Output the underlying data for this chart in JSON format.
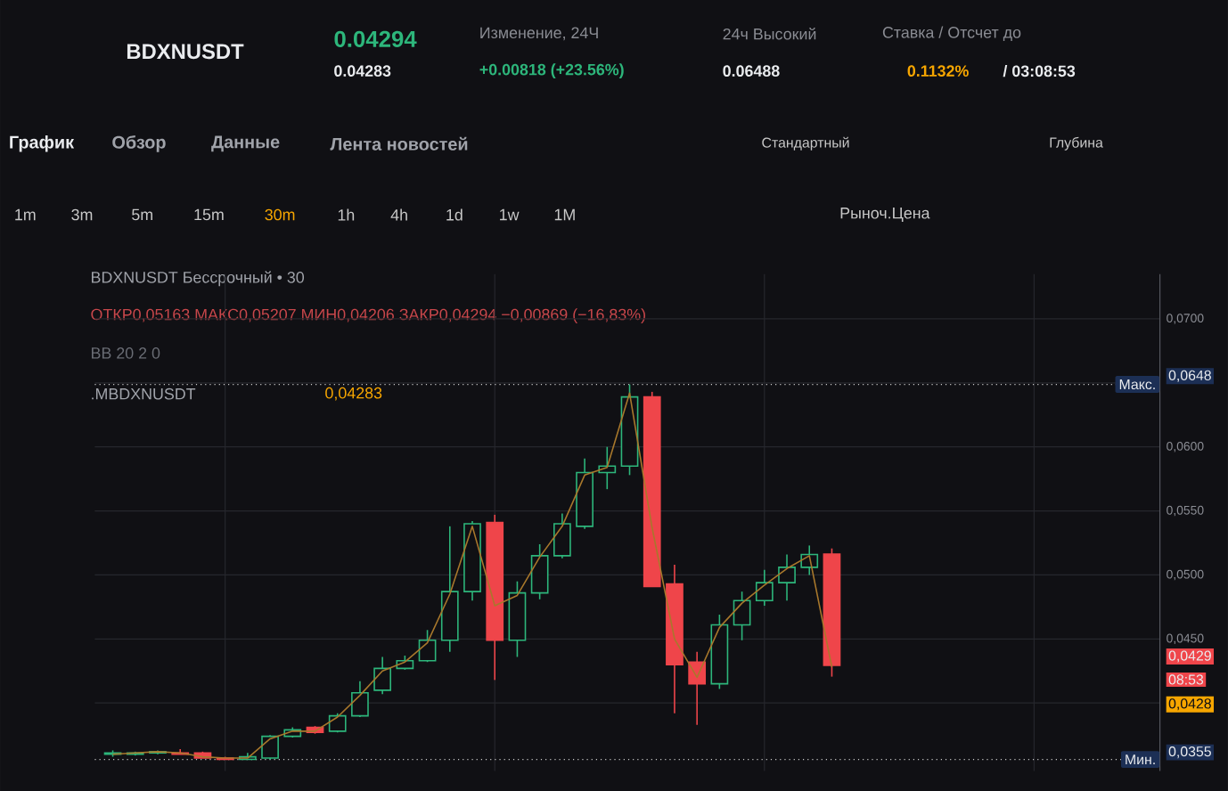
{
  "chart_data": {
    "type": "candlestick",
    "title": "BDXNUSDT Бессрочный • 30",
    "subtitle": "ОТКР0,05163 МАКС0,05207 МИН0,04206 ЗАКР0,04294 −0,00869 (−16,83%)",
    "categories": [
      null,
      null,
      null,
      null,
      null,
      null,
      null,
      null,
      null,
      null,
      null,
      null,
      null,
      null,
      null,
      null,
      null,
      null,
      null,
      null,
      null,
      null,
      null,
      null,
      null,
      null,
      null,
      null,
      null,
      null,
      null,
      null,
      null
    ],
    "ohlc": [
      [
        0.036,
        0.0363,
        0.0358,
        0.0361
      ],
      [
        0.036,
        0.0362,
        0.0359,
        0.0361
      ],
      [
        0.0361,
        0.0363,
        0.036,
        0.0362
      ],
      [
        0.0361,
        0.0364,
        0.036,
        0.036
      ],
      [
        0.0361,
        0.0362,
        0.0357,
        0.0357
      ],
      [
        0.0357,
        0.0358,
        0.0356,
        0.0356
      ],
      [
        0.0356,
        0.0361,
        0.0356,
        0.0358
      ],
      [
        0.0357,
        0.0375,
        0.0356,
        0.0374
      ],
      [
        0.0374,
        0.0381,
        0.0373,
        0.0379
      ],
      [
        0.0381,
        0.0382,
        0.0376,
        0.0377
      ],
      [
        0.0378,
        0.0392,
        0.0377,
        0.039
      ],
      [
        0.039,
        0.0417,
        0.0389,
        0.0408
      ],
      [
        0.041,
        0.0436,
        0.0407,
        0.0427
      ],
      [
        0.0427,
        0.0437,
        0.0426,
        0.0433
      ],
      [
        0.0433,
        0.0457,
        0.0432,
        0.0449
      ],
      [
        0.0449,
        0.0538,
        0.044,
        0.0487
      ],
      [
        0.0487,
        0.0542,
        0.048,
        0.054
      ],
      [
        0.0541,
        0.0547,
        0.0418,
        0.0449
      ],
      [
        0.0449,
        0.0495,
        0.0436,
        0.0486
      ],
      [
        0.0486,
        0.0524,
        0.0481,
        0.0515
      ],
      [
        0.0515,
        0.0548,
        0.0513,
        0.054
      ],
      [
        0.0538,
        0.0591,
        0.0536,
        0.058
      ],
      [
        0.058,
        0.06,
        0.0567,
        0.0585
      ],
      [
        0.0585,
        0.06488,
        0.0578,
        0.0639
      ],
      [
        0.0639,
        0.0643,
        0.0491,
        0.0491
      ],
      [
        0.0493,
        0.0508,
        0.0392,
        0.043
      ],
      [
        0.0432,
        0.044,
        0.0383,
        0.0415
      ],
      [
        0.0415,
        0.0469,
        0.0411,
        0.0461
      ],
      [
        0.0461,
        0.0487,
        0.0449,
        0.048
      ],
      [
        0.048,
        0.0504,
        0.0476,
        0.0494
      ],
      [
        0.0494,
        0.0516,
        0.048,
        0.0506
      ],
      [
        0.0506,
        0.0523,
        0.05,
        0.0516
      ],
      [
        0.05163,
        0.05207,
        0.04206,
        0.04294
      ]
    ],
    "colors": [
      "#2db67b",
      "#2db67b",
      "#2db67b",
      "#ef454a",
      "#ef454a",
      "#ef454a",
      "#2db67b",
      "#2db67b",
      "#2db67b",
      "#ef454a",
      "#2db67b",
      "#2db67b",
      "#2db67b",
      "#2db67b",
      "#2db67b",
      "#2db67b",
      "#2db67b",
      "#ef454a",
      "#2db67b",
      "#2db67b",
      "#2db67b",
      "#2db67b",
      "#2db67b",
      "#2db67b",
      "#ef454a",
      "#ef454a",
      "#ef454a",
      "#2db67b",
      "#2db67b",
      "#2db67b",
      "#2db67b",
      "#2db67b",
      "#ef454a"
    ],
    "series": [
      {
        "type": "line",
        "color": "#a8782c",
        "values": [
          0.036,
          0.0361,
          0.0362,
          0.0361,
          0.0358,
          0.0357,
          0.0357,
          0.0372,
          0.0378,
          0.0378,
          0.0389,
          0.0406,
          0.0425,
          0.0432,
          0.0447,
          0.0485,
          0.0538,
          0.0476,
          0.0484,
          0.0514,
          0.0538,
          0.0578,
          0.0584,
          0.0642,
          0.0537,
          0.045,
          0.042,
          0.0459,
          0.0478,
          0.0492,
          0.0505,
          0.0515,
          0.0428
        ]
      }
    ],
    "ylim": [
      0.0347,
      0.0735
    ],
    "yticks": [
      {
        "value": 0.07,
        "label": "0,0700"
      },
      {
        "value": 0.065,
        "label": null
      },
      {
        "value": 0.06,
        "label": "0,0600"
      },
      {
        "value": 0.055,
        "label": "0,0550"
      },
      {
        "value": 0.05,
        "label": "0,0500"
      },
      {
        "value": 0.045,
        "label": "0,0450"
      },
      {
        "value": 0.04,
        "label": null
      }
    ],
    "grid": true,
    "ref_lines": [
      {
        "axis": "y",
        "value": 0.06488,
        "label": "Макс.",
        "color": "#c8c8c8",
        "line_style": "dotted"
      },
      {
        "axis": "y",
        "value": 0.03559,
        "label": "Мин.",
        "color": "#c8c8c8",
        "line_style": "dotted"
      }
    ],
    "annotations": [
      "0.04294",
      "0.04283",
      "Изменение, 24Ч",
      "+0.00818 (+23.56%)",
      "24ч Высокий",
      "0.06488",
      "Ставка / Отсчет до",
      "0.1132%",
      "/ 03:08:53",
      "График",
      "Обзор",
      "Данные",
      "Лента новостей",
      "Стандартный",
      "Глубина",
      "1m",
      "3m",
      "5m",
      "15m",
      "30m",
      "1h",
      "4h",
      "1d",
      "1w",
      "1M",
      "Рыноч.Цена",
      "BB 20 2 0",
      ".MBDXNUSDT",
      "0,04283",
      "08:53",
      "0,0428",
      "BDXNUSDT",
      "0,0648",
      "0,0429",
      "0,0355"
    ]
  }
}
